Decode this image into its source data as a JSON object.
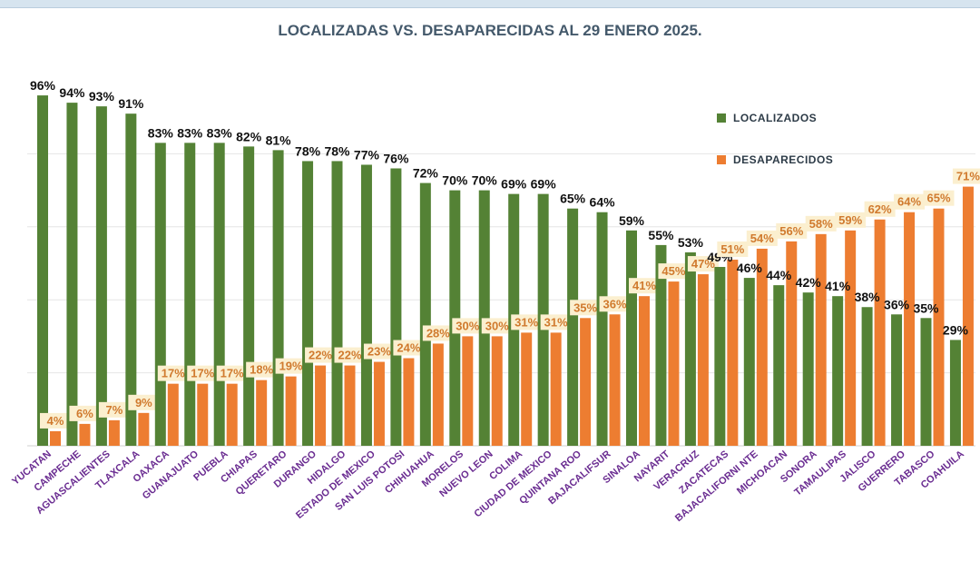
{
  "chart_data": {
    "type": "bar",
    "title": "LOCALIZADAS VS. DESAPARECIDAS AL 29 ENERO 2025.",
    "xlabel": "",
    "ylabel": "",
    "ylim": [
      0,
      100
    ],
    "grid": true,
    "legend_position": "top-right",
    "categories": [
      "YUCATAN",
      "CAMPECHE",
      "AGUASCALIENTES",
      "TLAXCALA",
      "OAXACA",
      "GUANAJUATO",
      "PUEBLA",
      "CHIAPAS",
      "QUERETARO",
      "DURANGO",
      "HIDALGO",
      "ESTADO DE MEXICO",
      "SAN LUIS POTOSI",
      "CHIHUAHUA",
      "MORELOS",
      "NUEVO LEON",
      "COLIMA",
      "CIUDAD DE MEXICO",
      "QUINTANA ROO",
      "BAJACALIFSUR",
      "SINALOA",
      "NAYARIT",
      "VERACRUZ",
      "ZACATECAS",
      "BAJACALIFORNI NTE",
      "MICHOACAN",
      "SONORA",
      "TAMAULIPAS",
      "JALISCO",
      "GUERRERO",
      "TABASCO",
      "COAHUILA"
    ],
    "series": [
      {
        "name": "LOCALIZADOS",
        "color": "#548235",
        "values": [
          96,
          94,
          93,
          91,
          83,
          83,
          83,
          82,
          81,
          78,
          78,
          77,
          76,
          72,
          70,
          70,
          69,
          69,
          65,
          64,
          59,
          55,
          53,
          49,
          46,
          44,
          42,
          41,
          38,
          36,
          35,
          29
        ]
      },
      {
        "name": "DESAPARECIDOS",
        "color": "#ed7d31",
        "values": [
          4,
          6,
          7,
          9,
          17,
          17,
          17,
          18,
          19,
          22,
          22,
          23,
          24,
          28,
          30,
          30,
          31,
          31,
          35,
          36,
          41,
          45,
          47,
          51,
          54,
          56,
          58,
          59,
          62,
          64,
          65,
          71
        ]
      }
    ],
    "category_label_color": "#6a2c91",
    "value_format": "percent"
  }
}
